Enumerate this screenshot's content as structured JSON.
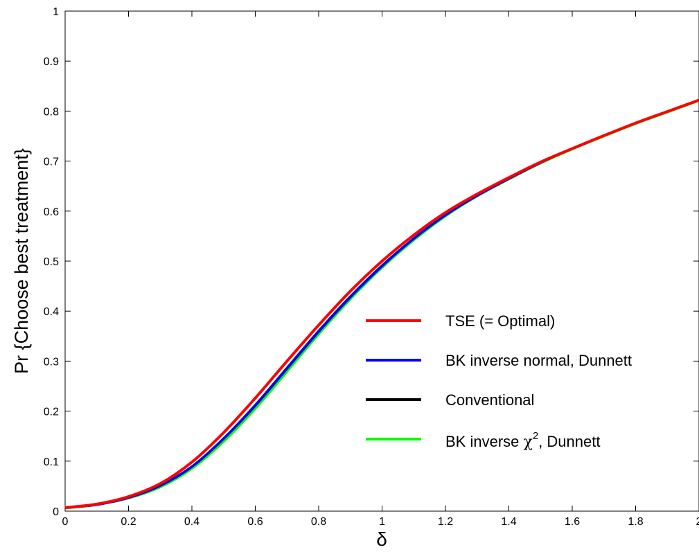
{
  "chart_data": {
    "type": "line",
    "title": "",
    "xlabel": "δ",
    "ylabel": "Pr {Choose best treatment}",
    "xlim": [
      0,
      2
    ],
    "ylim": [
      0,
      1
    ],
    "x_ticks": [
      0,
      0.2,
      0.4,
      0.6,
      0.8,
      1,
      1.2,
      1.4,
      1.6,
      1.8,
      2
    ],
    "x_tick_labels": [
      "0",
      "0.2",
      "0.4",
      "0.6",
      "0.8",
      "1",
      "1.2",
      "1.4",
      "1.6",
      "1.8",
      "2"
    ],
    "y_ticks": [
      0,
      0.1,
      0.2,
      0.3,
      0.4,
      0.5,
      0.6,
      0.7,
      0.8,
      0.9,
      1
    ],
    "y_tick_labels": [
      "0",
      "0.1",
      "0.2",
      "0.3",
      "0.4",
      "0.5",
      "0.6",
      "0.7",
      "0.8",
      "0.9",
      "1"
    ],
    "grid": false,
    "legend_position": "center-right",
    "x": [
      0,
      0.1,
      0.2,
      0.3,
      0.4,
      0.5,
      0.6,
      0.7,
      0.8,
      0.9,
      1.0,
      1.1,
      1.2,
      1.3,
      1.4,
      1.5,
      1.6,
      1.7,
      1.8,
      1.9,
      2.0
    ],
    "series": [
      {
        "name": "TSE (= Optimal)",
        "color": "#ff0000",
        "values": [
          0.007,
          0.014,
          0.029,
          0.055,
          0.098,
          0.157,
          0.226,
          0.3,
          0.372,
          0.44,
          0.5,
          0.552,
          0.597,
          0.634,
          0.667,
          0.698,
          0.725,
          0.751,
          0.776,
          0.799,
          0.822
        ]
      },
      {
        "name": "BK inverse normal, Dunnett",
        "color": "#0000ff",
        "values": [
          0.007,
          0.013,
          0.027,
          0.051,
          0.089,
          0.145,
          0.211,
          0.285,
          0.359,
          0.428,
          0.49,
          0.545,
          0.592,
          0.631,
          0.665,
          0.697,
          0.725,
          0.751,
          0.776,
          0.799,
          0.822
        ]
      },
      {
        "name": "Conventional",
        "color": "#000000",
        "values": [
          0.007,
          0.013,
          0.027,
          0.051,
          0.089,
          0.145,
          0.212,
          0.286,
          0.36,
          0.429,
          0.491,
          0.545,
          0.592,
          0.631,
          0.665,
          0.697,
          0.725,
          0.751,
          0.776,
          0.799,
          0.822
        ]
      },
      {
        "name": "BK inverse χ², Dunnett",
        "color": "#00ff00",
        "values": [
          0.006,
          0.013,
          0.026,
          0.048,
          0.085,
          0.139,
          0.205,
          0.279,
          0.354,
          0.424,
          0.487,
          0.542,
          0.59,
          0.63,
          0.664,
          0.696,
          0.724,
          0.75,
          0.775,
          0.798,
          0.821
        ]
      }
    ]
  },
  "legend": {
    "entries": [
      {
        "color": "#ff0000",
        "text": "TSE (= Optimal)"
      },
      {
        "color": "#0000ff",
        "text": "BK inverse normal, Dunnett"
      },
      {
        "color": "#000000",
        "text": "Conventional"
      },
      {
        "color": "#00ff00",
        "text_before": "BK inverse ",
        "symbol": "χ",
        "superscript": "2",
        "text_after": ", Dunnett"
      }
    ]
  }
}
